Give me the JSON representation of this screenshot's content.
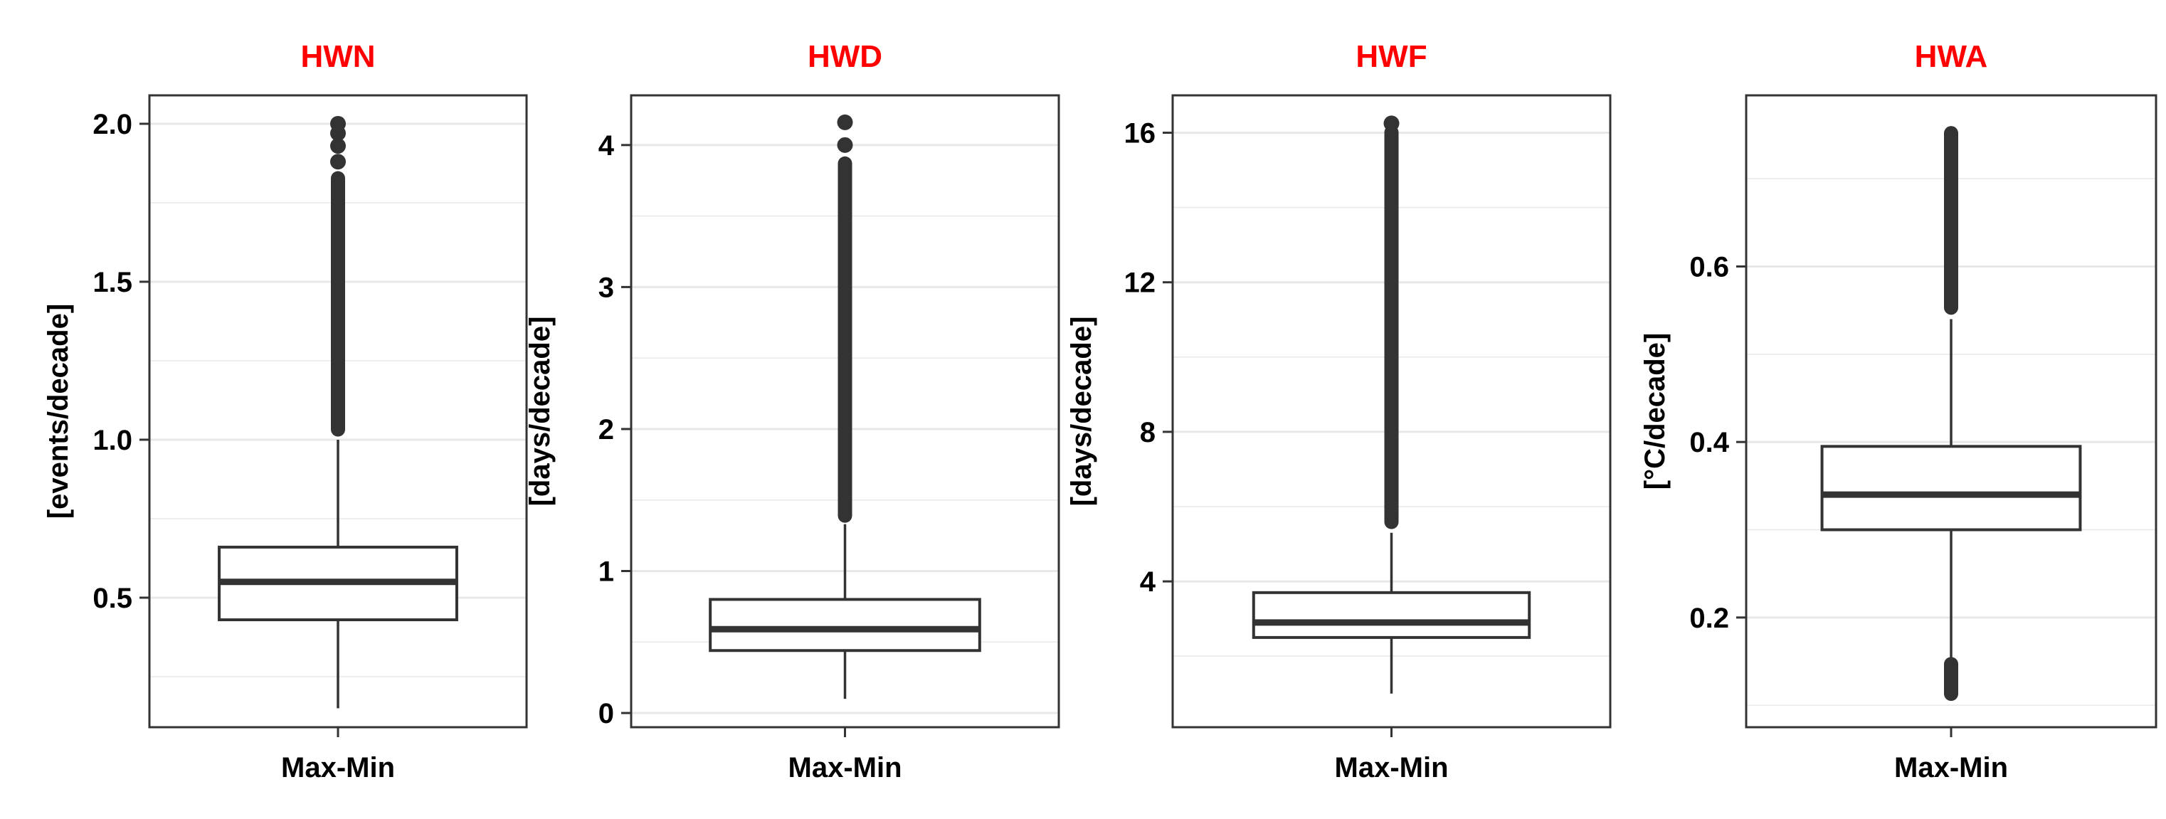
{
  "chart_data": [
    {
      "type": "box",
      "title": "HWN",
      "ylabel": "[events/decade]",
      "categories": [
        "Max-Min"
      ],
      "yticks": [
        0.5,
        1.0,
        1.5,
        2.0
      ],
      "ytick_labels": [
        "0.5",
        "1.0",
        "1.5",
        "2.0"
      ],
      "ylim": [
        0.09,
        2.09
      ],
      "grid": true,
      "box": {
        "whisker_low": 0.15,
        "q1": 0.43,
        "median": 0.55,
        "q3": 0.66,
        "whisker_high": 1.0,
        "outlier_dense_range": [
          1.01,
          1.85
        ],
        "outliers_isolated": [
          1.88,
          1.93,
          1.97,
          2.0
        ]
      }
    },
    {
      "type": "box",
      "title": "HWD",
      "ylabel": "[days/decade]",
      "categories": [
        "Max-Min"
      ],
      "yticks": [
        0,
        1,
        2,
        3,
        4
      ],
      "ytick_labels": [
        "0",
        "1",
        "2",
        "3",
        "4"
      ],
      "ylim": [
        -0.1,
        4.35
      ],
      "grid": true,
      "box": {
        "whisker_low": 0.1,
        "q1": 0.44,
        "median": 0.59,
        "q3": 0.8,
        "whisker_high": 1.33,
        "outlier_dense_range": [
          1.34,
          3.92
        ],
        "outliers_isolated": [
          4.0,
          4.16
        ]
      }
    },
    {
      "type": "box",
      "title": "HWF",
      "ylabel": "[days/decade]",
      "categories": [
        "Max-Min"
      ],
      "yticks": [
        4,
        8,
        12,
        16
      ],
      "ytick_labels": [
        "4",
        "8",
        "12",
        "16"
      ],
      "ylim": [
        0.1,
        17.0
      ],
      "grid": true,
      "box": {
        "whisker_low": 1.0,
        "q1": 2.5,
        "median": 2.9,
        "q3": 3.7,
        "whisker_high": 5.3,
        "outlier_dense_range": [
          5.4,
          16.2
        ],
        "outliers_isolated": [
          16.25
        ]
      }
    },
    {
      "type": "box",
      "title": "HWA",
      "ylabel": "[°C/decade]",
      "categories": [
        "Max-Min"
      ],
      "yticks": [
        0.2,
        0.4,
        0.6
      ],
      "ytick_labels": [
        "0.2",
        "0.4",
        "0.6"
      ],
      "ylim": [
        0.075,
        0.795
      ],
      "grid": true,
      "box": {
        "whisker_low": 0.15,
        "q1": 0.3,
        "median": 0.34,
        "q3": 0.395,
        "whisker_high": 0.54,
        "outlier_dense_range": [
          0.545,
          0.76
        ],
        "outlier_low_range": [
          0.105,
          0.155
        ],
        "outliers_isolated": []
      }
    }
  ],
  "colors": {
    "title": "#ff0000",
    "panel_border": "#333333",
    "grid": "#e8e8e8",
    "box_stroke": "#333333",
    "point": "#333333",
    "text": "#000000"
  }
}
